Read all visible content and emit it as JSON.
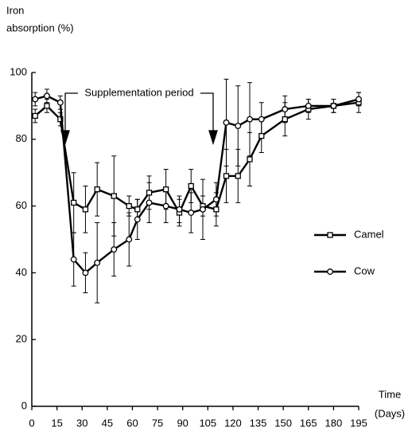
{
  "chart_data": {
    "type": "line",
    "ylabel": [
      "Iron",
      "absorption (%)"
    ],
    "xlabel": [
      "Time",
      "(Days)"
    ],
    "annotation": "Supplementation period",
    "x": [
      2,
      9,
      17,
      25,
      32,
      39,
      49,
      58,
      63,
      70,
      80,
      88,
      95,
      102,
      110,
      116,
      123,
      130,
      137,
      151,
      165,
      180,
      195
    ],
    "series": [
      {
        "name": "Camel",
        "color": "#000000",
        "marker": "square",
        "values": [
          87,
          90,
          86,
          61,
          59,
          65,
          63,
          60,
          59,
          64,
          65,
          58,
          66,
          60,
          59,
          69,
          69,
          74,
          81,
          86,
          89,
          90,
          91
        ],
        "errors": [
          2,
          2,
          2,
          9,
          7,
          8,
          12,
          3,
          3,
          5,
          6,
          4,
          5,
          3,
          5,
          8,
          8,
          8,
          5,
          5,
          3,
          2,
          3
        ]
      },
      {
        "name": "Cow",
        "color": "#000000",
        "marker": "circle",
        "values": [
          92,
          93,
          91,
          44,
          40,
          43,
          47,
          50,
          56,
          61,
          60,
          59,
          58,
          59,
          62,
          85,
          84,
          86,
          86,
          89,
          90,
          90,
          92
        ],
        "errors": [
          2,
          2,
          2,
          8,
          6,
          12,
          8,
          8,
          6,
          6,
          5,
          4,
          6,
          9,
          5,
          13,
          12,
          11,
          5,
          4,
          2,
          2,
          2
        ]
      }
    ],
    "xlim": [
      0,
      195
    ],
    "xticks": [
      0,
      15,
      30,
      45,
      60,
      75,
      90,
      105,
      120,
      135,
      150,
      165,
      180,
      195
    ],
    "ylim": [
      0,
      100
    ],
    "yticks": [
      0,
      20,
      40,
      60,
      80,
      100
    ],
    "grid": false,
    "legend": "right"
  }
}
